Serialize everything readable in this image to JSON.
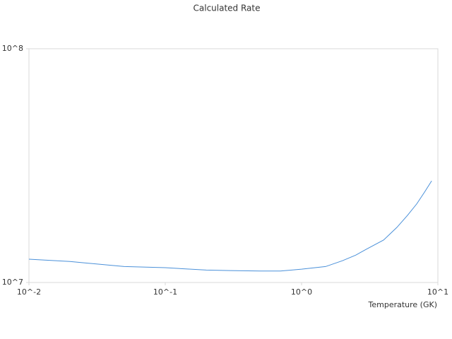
{
  "chart_data": {
    "type": "line",
    "title": "Calculated Rate",
    "x_label": "Temperature (GK)",
    "x": [
      0.01,
      0.02,
      0.05,
      0.1,
      0.2,
      0.3,
      0.5,
      0.7,
      1.0,
      1.5,
      2,
      2.5,
      3,
      4,
      5,
      6,
      7,
      8,
      9
    ],
    "series": [
      {
        "color": "#4a90d9",
        "values": [
          12580000,
          12300000,
          11700000,
          11570000,
          11300000,
          11250000,
          11200000,
          11200000,
          11400000,
          11700000,
          12400000,
          13100000,
          13900000,
          15200000,
          17200000,
          19400000,
          21700000,
          24400000,
          27200000
        ]
      }
    ],
    "xscale": "log",
    "yscale": "log",
    "xlim": [
      0.01,
      10
    ],
    "ylim": [
      10000000,
      100000000
    ],
    "xticks": [
      {
        "value": 0.01,
        "label": "10^-2"
      },
      {
        "value": 0.1,
        "label": "10^-1"
      },
      {
        "value": 1,
        "label": "10^0"
      },
      {
        "value": 10,
        "label": "10^1"
      }
    ],
    "yticks": [
      {
        "value": 10000000,
        "label": "10^7"
      },
      {
        "value": 100000000,
        "label": "10^8"
      }
    ]
  }
}
